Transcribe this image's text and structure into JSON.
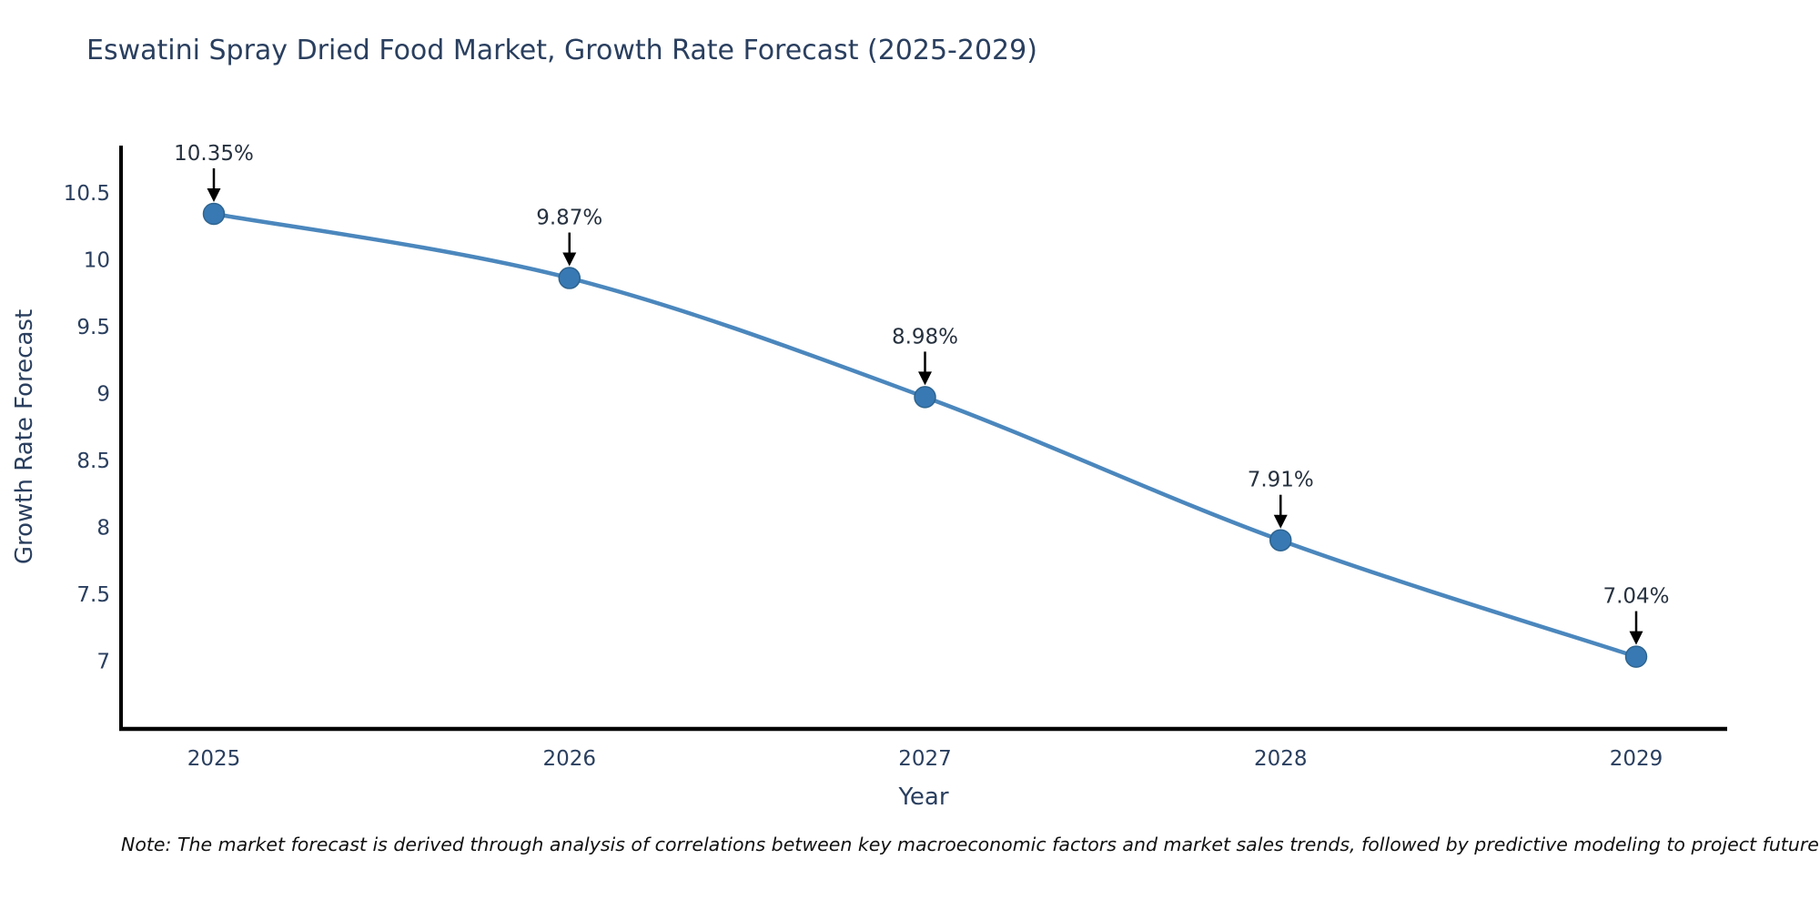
{
  "title": "Eswatini Spray Dried Food Market, Growth Rate Forecast (2025-2029)",
  "note": "Note: The market forecast is derived through analysis of correlations between key macroeconomic factors and market sales trends, followed by predictive modeling to project future sal",
  "chart_data": {
    "type": "line",
    "title": "Eswatini Spray Dried Food Market, Growth Rate Forecast (2025-2029)",
    "xlabel": "Year",
    "ylabel": "Growth Rate Forecast",
    "categories": [
      "2025",
      "2026",
      "2027",
      "2028",
      "2029"
    ],
    "series": [
      {
        "name": "Growth Rate Forecast",
        "values": [
          10.35,
          9.87,
          8.98,
          7.91,
          7.04
        ]
      }
    ],
    "data_labels": [
      "10.35%",
      "9.87%",
      "8.98%",
      "7.91%",
      "7.04%"
    ],
    "line_shape": "spline",
    "markers": true,
    "grid": false,
    "legend": false,
    "ylim": [
      6.5,
      10.86
    ],
    "yticks": {
      "values": [
        7,
        7.5,
        8,
        8.5,
        9,
        9.5,
        10,
        10.5
      ],
      "labels": [
        "7",
        "7.5",
        "8",
        "8.5",
        "9",
        "9.5",
        "10",
        "10.5"
      ]
    },
    "colors": {
      "line": "#4b87bd",
      "marker": "#3879b4",
      "marker_stroke": "#2e648f",
      "axis": "#000000",
      "text": "#2a3f5f",
      "annotation_text": "#26313f",
      "arrow": "#000000"
    }
  }
}
